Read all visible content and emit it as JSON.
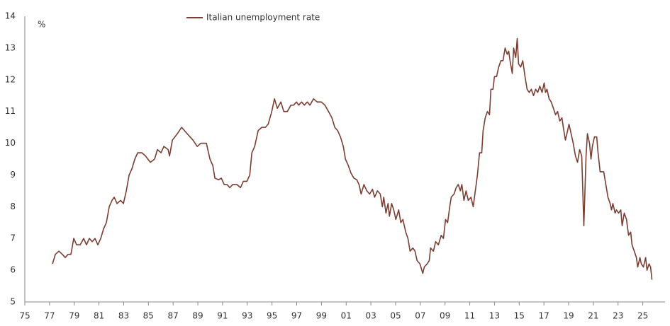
{
  "chart_data": {
    "type": "line",
    "y_label": "%",
    "legend": "top",
    "x": [
      1977.24,
      1977.47,
      1977.76,
      1978.04,
      1978.27,
      1978.5,
      1978.73,
      1978.96,
      1979.19,
      1979.48,
      1979.76,
      1979.99,
      1980.22,
      1980.45,
      1980.68,
      1980.91,
      1981.14,
      1981.37,
      1981.6,
      1981.83,
      1982.06,
      1982.23,
      1982.46,
      1982.75,
      1982.98,
      1983.21,
      1983.44,
      1983.67,
      1983.9,
      1984.13,
      1984.47,
      1984.76,
      1985.16,
      1985.5,
      1985.73,
      1986.02,
      1986.25,
      1986.59,
      1986.71,
      1986.94,
      1987.34,
      1987.69,
      1988.14,
      1988.6,
      1988.95,
      1989.24,
      1989.69,
      1989.98,
      1990.21,
      1990.38,
      1990.67,
      1990.9,
      1991.13,
      1991.36,
      1991.59,
      1991.82,
      1992.16,
      1992.45,
      1992.68,
      1992.97,
      1993.2,
      1993.37,
      1993.6,
      1993.88,
      1994.17,
      1994.46,
      1994.69,
      1994.98,
      1995.2,
      1995.43,
      1995.72,
      1995.95,
      1996.24,
      1996.53,
      1996.75,
      1996.98,
      1997.16,
      1997.39,
      1997.62,
      1997.85,
      1998.07,
      1998.36,
      1998.65,
      1998.99,
      1999.28,
      1999.57,
      1999.85,
      2000.08,
      2000.31,
      2000.54,
      2000.77,
      2000.94,
      2001.17,
      2001.4,
      2001.63,
      2001.86,
      2002.04,
      2002.21,
      2002.44,
      2002.67,
      2002.9,
      2003.13,
      2003.3,
      2003.53,
      2003.76,
      2003.93,
      2004.04,
      2004.22,
      2004.39,
      2004.5,
      2004.68,
      2004.85,
      2005.02,
      2005.25,
      2005.42,
      2005.59,
      2005.82,
      2006.0,
      2006.17,
      2006.4,
      2006.57,
      2006.74,
      2006.97,
      2007.2,
      2007.32,
      2007.55,
      2007.72,
      2007.83,
      2008.06,
      2008.24,
      2008.46,
      2008.69,
      2008.87,
      2009.04,
      2009.21,
      2009.38,
      2009.5,
      2009.73,
      2009.9,
      2010.07,
      2010.24,
      2010.36,
      2010.53,
      2010.7,
      2010.88,
      2011.1,
      2011.28,
      2011.45,
      2011.62,
      2011.79,
      2011.97,
      2012.08,
      2012.25,
      2012.43,
      2012.6,
      2012.71,
      2012.88,
      2013.0,
      2013.17,
      2013.34,
      2013.52,
      2013.69,
      2013.86,
      2014.03,
      2014.15,
      2014.26,
      2014.44,
      2014.55,
      2014.72,
      2014.84,
      2014.95,
      2015.12,
      2015.29,
      2015.47,
      2015.64,
      2015.81,
      2015.98,
      2016.16,
      2016.33,
      2016.5,
      2016.67,
      2016.85,
      2017.02,
      2017.13,
      2017.25,
      2017.42,
      2017.59,
      2017.77,
      2017.94,
      2018.11,
      2018.28,
      2018.46,
      2018.57,
      2018.74,
      2018.86,
      2019.03,
      2019.2,
      2019.37,
      2019.55,
      2019.72,
      2019.89,
      2020.06,
      2020.23,
      2020.41,
      2020.52,
      2020.69,
      2020.81,
      2020.92,
      2021.09,
      2021.27,
      2021.38,
      2021.55,
      2021.72,
      2021.84,
      2022.01,
      2022.18,
      2022.36,
      2022.47,
      2022.58,
      2022.76,
      2022.87,
      2023.04,
      2023.22,
      2023.33,
      2023.5,
      2023.68,
      2023.85,
      2024.02,
      2024.13,
      2024.31,
      2024.48,
      2024.59,
      2024.77,
      2024.88,
      2025.05,
      2025.23,
      2025.34,
      2025.51,
      2025.63,
      2025.74
    ],
    "series": [
      {
        "name": "Italian unemployment rate",
        "color": "#7a3e32",
        "values": [
          6.2,
          6.5,
          6.6,
          6.5,
          6.4,
          6.5,
          6.5,
          7.0,
          6.8,
          6.8,
          7.0,
          6.8,
          7.0,
          6.9,
          7.0,
          6.8,
          7.0,
          7.3,
          7.5,
          8.0,
          8.2,
          8.3,
          8.1,
          8.2,
          8.1,
          8.5,
          9.0,
          9.2,
          9.5,
          9.7,
          9.7,
          9.6,
          9.4,
          9.5,
          9.8,
          9.7,
          9.9,
          9.8,
          9.6,
          10.1,
          10.3,
          10.5,
          10.3,
          10.1,
          9.9,
          10.0,
          10.0,
          9.5,
          9.3,
          8.9,
          8.85,
          8.9,
          8.7,
          8.7,
          8.6,
          8.7,
          8.7,
          8.6,
          8.8,
          8.8,
          9.0,
          9.7,
          9.9,
          10.4,
          10.5,
          10.5,
          10.6,
          11.0,
          11.4,
          11.1,
          11.3,
          11.0,
          11.0,
          11.2,
          11.2,
          11.3,
          11.2,
          11.3,
          11.2,
          11.3,
          11.2,
          11.4,
          11.3,
          11.3,
          11.2,
          11.0,
          10.8,
          10.5,
          10.4,
          10.2,
          9.9,
          9.5,
          9.3,
          9.05,
          8.9,
          8.85,
          8.7,
          8.4,
          8.7,
          8.5,
          8.4,
          8.55,
          8.3,
          8.5,
          8.4,
          8.0,
          8.3,
          7.8,
          8.1,
          7.7,
          8.1,
          7.9,
          7.6,
          7.9,
          7.5,
          7.6,
          7.2,
          7.0,
          6.6,
          6.7,
          6.6,
          6.3,
          6.2,
          5.9,
          6.1,
          6.2,
          6.3,
          6.7,
          6.6,
          6.9,
          6.8,
          7.1,
          7.0,
          7.6,
          7.5,
          8.0,
          8.3,
          8.4,
          8.6,
          8.7,
          8.5,
          8.7,
          8.2,
          8.5,
          8.2,
          8.3,
          8.0,
          8.5,
          9.0,
          9.7,
          9.7,
          10.4,
          10.8,
          11.0,
          10.9,
          11.7,
          11.7,
          12.1,
          12.1,
          12.4,
          12.6,
          12.6,
          13.0,
          12.8,
          12.9,
          12.6,
          12.2,
          13.0,
          12.7,
          13.3,
          12.5,
          12.4,
          12.6,
          12.1,
          11.7,
          11.6,
          11.7,
          11.5,
          11.7,
          11.6,
          11.8,
          11.6,
          11.9,
          11.6,
          11.7,
          11.4,
          11.3,
          11.1,
          10.9,
          11.0,
          10.7,
          10.8,
          10.5,
          10.1,
          10.3,
          10.6,
          10.3,
          10.0,
          9.6,
          9.4,
          9.8,
          9.6,
          7.4,
          9.6,
          10.3,
          10.0,
          9.5,
          9.9,
          10.2,
          10.2,
          9.7,
          9.1,
          9.1,
          9.1,
          8.7,
          8.3,
          8.1,
          7.9,
          8.1,
          7.8,
          7.9,
          7.8,
          7.9,
          7.4,
          7.8,
          7.6,
          7.1,
          7.2,
          6.8,
          6.6,
          6.4,
          6.1,
          6.4,
          6.2,
          6.1,
          6.4,
          6.0,
          6.2,
          6.1,
          5.7
        ]
      }
    ],
    "xlim": [
      1975,
      2026.8
    ],
    "xticks": [
      {
        "value": 1975,
        "label": "75"
      },
      {
        "value": 1977,
        "label": "77"
      },
      {
        "value": 1979,
        "label": "79"
      },
      {
        "value": 1981,
        "label": "81"
      },
      {
        "value": 1983,
        "label": "83"
      },
      {
        "value": 1985,
        "label": "85"
      },
      {
        "value": 1987,
        "label": "87"
      },
      {
        "value": 1989,
        "label": "89"
      },
      {
        "value": 1991,
        "label": "91"
      },
      {
        "value": 1993,
        "label": "93"
      },
      {
        "value": 1995,
        "label": "95"
      },
      {
        "value": 1997,
        "label": "97"
      },
      {
        "value": 1999,
        "label": "99"
      },
      {
        "value": 2001,
        "label": "01"
      },
      {
        "value": 2003,
        "label": "03"
      },
      {
        "value": 2005,
        "label": "05"
      },
      {
        "value": 2007,
        "label": "07"
      },
      {
        "value": 2009,
        "label": "09"
      },
      {
        "value": 2011,
        "label": "11"
      },
      {
        "value": 2013,
        "label": "13"
      },
      {
        "value": 2015,
        "label": "15"
      },
      {
        "value": 2017,
        "label": "17"
      },
      {
        "value": 2019,
        "label": "19"
      },
      {
        "value": 2021,
        "label": "21"
      },
      {
        "value": 2023,
        "label": "23"
      },
      {
        "value": 2025,
        "label": "25"
      }
    ],
    "ylim": [
      5,
      14
    ],
    "yticks": [
      5,
      6,
      7,
      8,
      9,
      10,
      11,
      12,
      13,
      14
    ],
    "grid": false
  }
}
